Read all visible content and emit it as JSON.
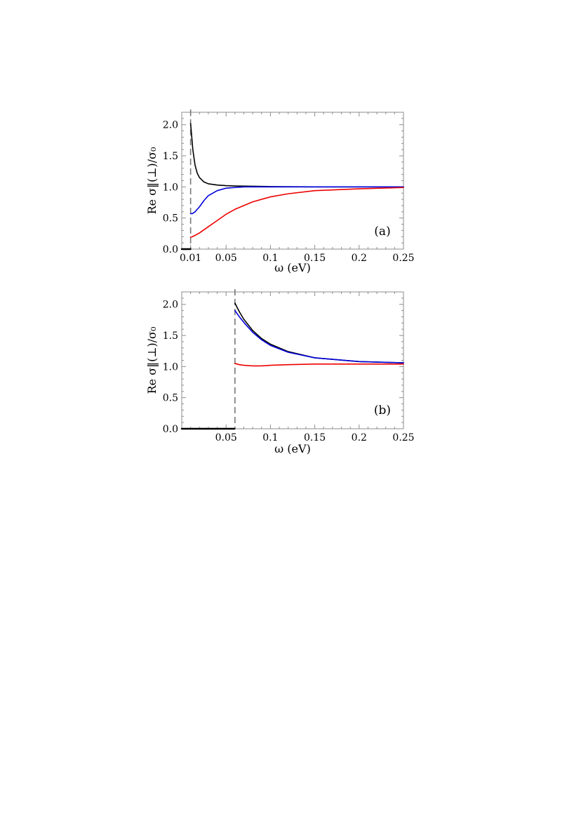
{
  "chart_data": [
    {
      "type": "line",
      "panel_label": "(a)",
      "xlabel": "ω (eV)",
      "ylabel": "Re σ‖(⊥)/σ₀",
      "xlim": [
        0.0,
        0.25
      ],
      "ylim": [
        0.0,
        2.2
      ],
      "x_ticks": [
        0.01,
        0.05,
        0.1,
        0.15,
        0.2,
        0.25
      ],
      "x_tick_labels": [
        "0.01",
        "0.05",
        "0.1",
        "0.15",
        "0.2",
        "0.25"
      ],
      "y_ticks": [
        0.0,
        0.5,
        1.0,
        1.5,
        2.0
      ],
      "y_tick_labels": [
        "0.0",
        "0.5",
        "1.0",
        "1.5",
        "2.0"
      ],
      "threshold_x": 0.01,
      "series": [
        {
          "color": "#000000",
          "x": [
            0.0,
            0.0099
          ],
          "y": [
            0.0,
            0.0
          ]
        },
        {
          "color": "#000000",
          "x": [
            0.01,
            0.0125,
            0.015,
            0.0175,
            0.02,
            0.025,
            0.03,
            0.04,
            0.05,
            0.06,
            0.08,
            0.1,
            0.15,
            0.2,
            0.25
          ],
          "y": [
            2.02,
            1.6,
            1.35,
            1.22,
            1.15,
            1.08,
            1.05,
            1.03,
            1.02,
            1.015,
            1.01,
            1.005,
            1.0,
            1.0,
            1.0
          ]
        },
        {
          "color": "#0000dd",
          "x": [
            0.01,
            0.012,
            0.015,
            0.02,
            0.025,
            0.03,
            0.04,
            0.05,
            0.06,
            0.07,
            0.08,
            0.1,
            0.15,
            0.2,
            0.25
          ],
          "y": [
            0.57,
            0.57,
            0.6,
            0.68,
            0.78,
            0.86,
            0.94,
            0.98,
            0.99,
            1.0,
            1.0,
            1.0,
            1.0,
            1.0,
            1.0
          ]
        },
        {
          "color": "#ee0000",
          "x": [
            0.01,
            0.012,
            0.015,
            0.02,
            0.03,
            0.04,
            0.05,
            0.06,
            0.08,
            0.1,
            0.12,
            0.15,
            0.2,
            0.25
          ],
          "y": [
            0.19,
            0.2,
            0.22,
            0.26,
            0.36,
            0.46,
            0.56,
            0.64,
            0.76,
            0.84,
            0.89,
            0.94,
            0.97,
            0.99
          ]
        }
      ]
    },
    {
      "type": "line",
      "panel_label": "(b)",
      "xlabel": "ω (eV)",
      "ylabel": "Re σ‖(⊥)/σ₀",
      "xlim": [
        0.0,
        0.25
      ],
      "ylim": [
        0.0,
        2.2
      ],
      "x_ticks": [
        0.05,
        0.1,
        0.15,
        0.2,
        0.25
      ],
      "x_tick_labels": [
        "0.05",
        "0.1",
        "0.15",
        "0.2",
        "0.25"
      ],
      "y_ticks": [
        0.0,
        0.5,
        1.0,
        1.5,
        2.0
      ],
      "y_tick_labels": [
        "0.0",
        "0.5",
        "1.0",
        "1.5",
        "2.0"
      ],
      "threshold_x": 0.06,
      "series": [
        {
          "color": "#000000",
          "x": [
            0.0,
            0.0595
          ],
          "y": [
            0.0,
            0.0
          ]
        },
        {
          "color": "#000000",
          "x": [
            0.06,
            0.065,
            0.07,
            0.08,
            0.09,
            0.1,
            0.12,
            0.15,
            0.2,
            0.25
          ],
          "y": [
            2.02,
            1.88,
            1.76,
            1.58,
            1.45,
            1.36,
            1.24,
            1.14,
            1.08,
            1.06
          ]
        },
        {
          "color": "#0000dd",
          "x": [
            0.06,
            0.065,
            0.07,
            0.08,
            0.09,
            0.1,
            0.12,
            0.15,
            0.2,
            0.25
          ],
          "y": [
            1.9,
            1.8,
            1.71,
            1.55,
            1.43,
            1.34,
            1.23,
            1.14,
            1.08,
            1.06
          ]
        },
        {
          "color": "#ee0000",
          "x": [
            0.06,
            0.065,
            0.07,
            0.08,
            0.09,
            0.1,
            0.12,
            0.15,
            0.2,
            0.25
          ],
          "y": [
            1.05,
            1.03,
            1.02,
            1.01,
            1.01,
            1.02,
            1.03,
            1.04,
            1.04,
            1.04
          ]
        }
      ]
    }
  ]
}
